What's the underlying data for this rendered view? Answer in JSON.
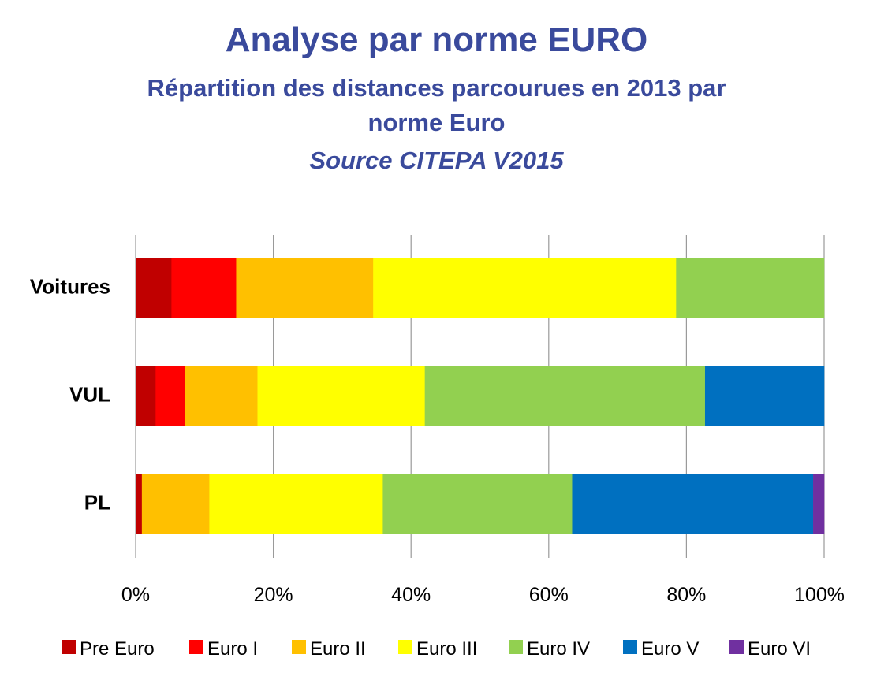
{
  "header": {
    "title": "Analyse par norme EURO",
    "subtitle_line1": "Répartition des distances parcourues en 2013 par",
    "subtitle_line2": "norme Euro",
    "source": "Source CITEPA V2015"
  },
  "chart_data": {
    "type": "bar",
    "orientation": "horizontal",
    "stacked": "percent",
    "categories": [
      "Voitures",
      "VUL",
      "PL"
    ],
    "series": [
      {
        "name": "Pre Euro",
        "color": "#c00000",
        "values": [
          5.2,
          2.9,
          0.9
        ]
      },
      {
        "name": "Euro I",
        "color": "#ff0000",
        "values": [
          9.4,
          4.3,
          0.0
        ]
      },
      {
        "name": "Euro II",
        "color": "#ffc000",
        "values": [
          19.9,
          10.5,
          9.8
        ]
      },
      {
        "name": "Euro III",
        "color": "#ffff00",
        "values": [
          44.0,
          24.3,
          25.2
        ]
      },
      {
        "name": "Euro IV",
        "color": "#92d050",
        "values": [
          21.5,
          40.7,
          27.5
        ]
      },
      {
        "name": "Euro V",
        "color": "#0070c0",
        "values": [
          0.0,
          17.3,
          35.0
        ]
      },
      {
        "name": "Euro VI",
        "color": "#7030a0",
        "values": [
          0.0,
          0.0,
          1.6
        ]
      }
    ],
    "x_ticks": [
      "0%",
      "20%",
      "40%",
      "60%",
      "80%",
      "100%"
    ],
    "xlim": [
      0,
      100
    ],
    "grid": "vertical",
    "legend": "bottom"
  }
}
